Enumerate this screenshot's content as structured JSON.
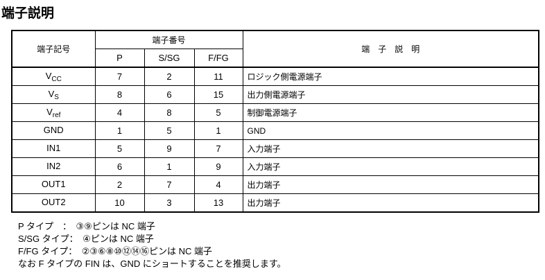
{
  "title": "端子説明",
  "headers": {
    "symbol": "端子記号",
    "number": "端子番号",
    "p": "P",
    "ssg": "S/SG",
    "ffg": "F/FG",
    "desc": "端　子　説　明"
  },
  "rows": [
    {
      "sym": "V",
      "sub": "CC",
      "p": "7",
      "ssg": "2",
      "ffg": "11",
      "desc": "ロジック側電源端子"
    },
    {
      "sym": "V",
      "sub": "S",
      "p": "8",
      "ssg": "6",
      "ffg": "15",
      "desc": "出力側電源端子"
    },
    {
      "sym": "V",
      "sub": "ref",
      "p": "4",
      "ssg": "8",
      "ffg": "5",
      "desc": "制御電源端子"
    },
    {
      "sym": "GND",
      "sub": "",
      "p": "1",
      "ssg": "5",
      "ffg": "1",
      "desc": "GND"
    },
    {
      "sym": "IN1",
      "sub": "",
      "p": "5",
      "ssg": "9",
      "ffg": "7",
      "desc": "入力端子"
    },
    {
      "sym": "IN2",
      "sub": "",
      "p": "6",
      "ssg": "1",
      "ffg": "9",
      "desc": "入力端子"
    },
    {
      "sym": "OUT1",
      "sub": "",
      "p": "2",
      "ssg": "7",
      "ffg": "4",
      "desc": "出力端子"
    },
    {
      "sym": "OUT2",
      "sub": "",
      "p": "10",
      "ssg": "3",
      "ffg": "13",
      "desc": "出力端子"
    }
  ],
  "notes": [
    "P タイプ　：　③⑨ピンは NC 端子",
    "S/SG タイプ：　④ピンは NC 端子",
    "F/FG タイプ：　②③⑥⑧⑩⑫⑭⑯ピンは NC 端子",
    "なお F タイプの FIN は、GND にショートすることを推奨します。"
  ]
}
